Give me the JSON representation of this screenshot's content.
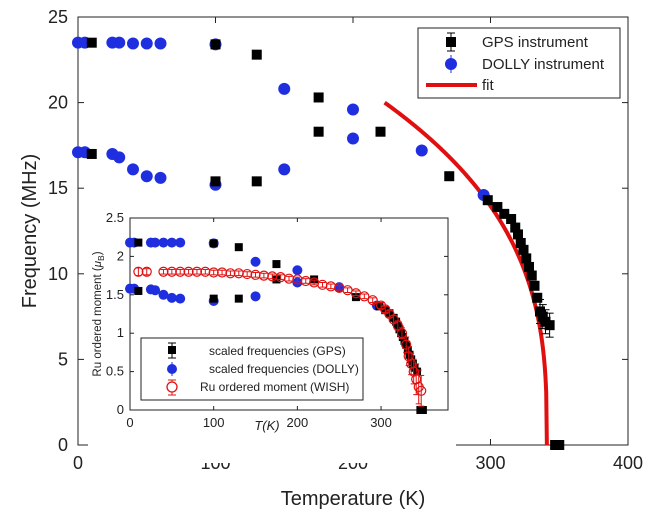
{
  "chart_data": [
    {
      "type": "scatter",
      "title": "",
      "xlabel": "Temperature (K)",
      "ylabel": "Frequency (MHz)",
      "xlim": [
        0,
        400
      ],
      "ylim": [
        0,
        25
      ],
      "xticks": [
        0,
        100,
        200,
        300,
        400
      ],
      "yticks": [
        0,
        5,
        10,
        15,
        20,
        25
      ],
      "grid": false,
      "legend_position": "top-right",
      "series": [
        {
          "name": "GPS instrument",
          "marker": "square",
          "color": "#000000",
          "points": [
            [
              10,
              23.5
            ],
            [
              10,
              17.0
            ],
            [
              100,
              23.4
            ],
            [
              100,
              15.4
            ],
            [
              130,
              22.8
            ],
            [
              130,
              15.4
            ],
            [
              175,
              20.3
            ],
            [
              175,
              18.3
            ],
            [
              220,
              18.3
            ],
            [
              270,
              15.7
            ],
            [
              298,
              14.3
            ],
            [
              305,
              13.9
            ],
            [
              310,
              13.5
            ],
            [
              315,
              13.2
            ],
            [
              318,
              12.7
            ],
            [
              320,
              12.3
            ],
            [
              322,
              11.8
            ],
            [
              324,
              11.4
            ],
            [
              326,
              10.9
            ],
            [
              328,
              10.4
            ],
            [
              330,
              9.9
            ],
            [
              332,
              9.3
            ],
            [
              334,
              8.6
            ],
            [
              336,
              7.8
            ],
            [
              338,
              7.5
            ],
            [
              340,
              7.2
            ],
            [
              343,
              7.0
            ],
            [
              347,
              0.0
            ],
            [
              350,
              0.0
            ]
          ]
        },
        {
          "name": "DOLLY instrument",
          "marker": "circle",
          "color": "#1f2fe0",
          "points": [
            [
              0,
              23.5
            ],
            [
              5,
              23.5
            ],
            [
              25,
              23.5
            ],
            [
              30,
              23.5
            ],
            [
              40,
              23.45
            ],
            [
              50,
              23.45
            ],
            [
              60,
              23.45
            ],
            [
              100,
              23.4
            ],
            [
              150,
              20.8
            ],
            [
              200,
              19.6
            ],
            [
              250,
              17.2
            ],
            [
              295,
              14.6
            ],
            [
              0,
              17.1
            ],
            [
              5,
              17.1
            ],
            [
              25,
              17.0
            ],
            [
              30,
              16.8
            ],
            [
              40,
              16.1
            ],
            [
              50,
              15.7
            ],
            [
              60,
              15.6
            ],
            [
              100,
              15.2
            ],
            [
              150,
              16.1
            ],
            [
              200,
              17.9
            ]
          ]
        },
        {
          "name": "fit",
          "type": "line",
          "color": "#e01010",
          "Tc": 341,
          "A": 20.0,
          "x_start": 223,
          "exponent": 0.34
        }
      ]
    },
    {
      "type": "scatter",
      "title": "",
      "xlabel": "T(K)",
      "ylabel": "Ru ordered moment (μB)",
      "ylabel_parts": [
        "Ru ordered moment (",
        "μ",
        "B",
        ")"
      ],
      "xlim": [
        0,
        380
      ],
      "ylim": [
        0,
        2.5
      ],
      "xticks": [
        0,
        100,
        200,
        300
      ],
      "yticks": [
        0,
        0.5,
        1,
        1.5,
        2,
        2.5
      ],
      "ytick_labels": [
        "0",
        "0.5",
        "1",
        "1.5",
        "2",
        "2.5"
      ],
      "grid": false,
      "legend_position": "bottom-left",
      "series": [
        {
          "name": "scaled frequencies (GPS)",
          "marker": "square",
          "color": "#000000",
          "points": [
            [
              10,
              2.18
            ],
            [
              10,
              1.55
            ],
            [
              100,
              2.17
            ],
            [
              100,
              1.45
            ],
            [
              130,
              2.12
            ],
            [
              130,
              1.45
            ],
            [
              175,
              1.9
            ],
            [
              175,
              1.7
            ],
            [
              220,
              1.7
            ],
            [
              270,
              1.47
            ],
            [
              298,
              1.35
            ],
            [
              305,
              1.3
            ],
            [
              310,
              1.26
            ],
            [
              315,
              1.2
            ],
            [
              318,
              1.15
            ],
            [
              320,
              1.1
            ],
            [
              322,
              1.05
            ],
            [
              324,
              1.0
            ],
            [
              326,
              0.95
            ],
            [
              328,
              0.9
            ],
            [
              330,
              0.85
            ],
            [
              332,
              0.78
            ],
            [
              334,
              0.72
            ],
            [
              336,
              0.66
            ],
            [
              338,
              0.6
            ],
            [
              340,
              0.55
            ],
            [
              343,
              0.5
            ],
            [
              347,
              0.0
            ],
            [
              350,
              0.0
            ]
          ]
        },
        {
          "name": "scaled frequencies (DOLLY)",
          "marker": "circle",
          "color": "#1f2fe0",
          "points": [
            [
              0,
              2.18
            ],
            [
              5,
              2.18
            ],
            [
              25,
              2.18
            ],
            [
              30,
              2.18
            ],
            [
              40,
              2.18
            ],
            [
              50,
              2.18
            ],
            [
              60,
              2.18
            ],
            [
              100,
              2.17
            ],
            [
              150,
              1.93
            ],
            [
              200,
              1.82
            ],
            [
              250,
              1.6
            ],
            [
              295,
              1.36
            ],
            [
              0,
              1.58
            ],
            [
              5,
              1.58
            ],
            [
              25,
              1.57
            ],
            [
              30,
              1.56
            ],
            [
              40,
              1.5
            ],
            [
              50,
              1.46
            ],
            [
              60,
              1.45
            ],
            [
              100,
              1.42
            ],
            [
              150,
              1.48
            ],
            [
              200,
              1.66
            ]
          ]
        },
        {
          "name": "Ru ordered moment (WISH)",
          "marker": "open-circle",
          "color": "#e01010",
          "points": [
            [
              10,
              1.8,
              0.05
            ],
            [
              20,
              1.8,
              0.04
            ],
            [
              40,
              1.8,
              0.03
            ],
            [
              50,
              1.8,
              0.03
            ],
            [
              60,
              1.8,
              0.03
            ],
            [
              70,
              1.8,
              0.03
            ],
            [
              80,
              1.8,
              0.03
            ],
            [
              90,
              1.8,
              0.03
            ],
            [
              100,
              1.79,
              0.03
            ],
            [
              110,
              1.79,
              0.03
            ],
            [
              120,
              1.78,
              0.03
            ],
            [
              130,
              1.78,
              0.03
            ],
            [
              140,
              1.77,
              0.03
            ],
            [
              150,
              1.76,
              0.03
            ],
            [
              160,
              1.75,
              0.03
            ],
            [
              170,
              1.74,
              0.03
            ],
            [
              180,
              1.73,
              0.03
            ],
            [
              190,
              1.71,
              0.03
            ],
            [
              200,
              1.7,
              0.03
            ],
            [
              210,
              1.68,
              0.03
            ],
            [
              220,
              1.66,
              0.03
            ],
            [
              230,
              1.63,
              0.03
            ],
            [
              240,
              1.61,
              0.03
            ],
            [
              250,
              1.59,
              0.03
            ],
            [
              260,
              1.56,
              0.03
            ],
            [
              270,
              1.52,
              0.03
            ],
            [
              280,
              1.48,
              0.03
            ],
            [
              290,
              1.43,
              0.03
            ],
            [
              300,
              1.36,
              0.04
            ],
            [
              305,
              1.31,
              0.04
            ],
            [
              310,
              1.25,
              0.04
            ],
            [
              315,
              1.18,
              0.05
            ],
            [
              320,
              1.1,
              0.06
            ],
            [
              325,
              1.0,
              0.07
            ],
            [
              330,
              0.85,
              0.1
            ],
            [
              333,
              0.7,
              0.12
            ],
            [
              336,
              0.6,
              0.14
            ],
            [
              339,
              0.5,
              0.16
            ],
            [
              342,
              0.4,
              0.2
            ],
            [
              345,
              0.3,
              0.22
            ],
            [
              348,
              0.25,
              0.2
            ]
          ]
        }
      ]
    }
  ]
}
